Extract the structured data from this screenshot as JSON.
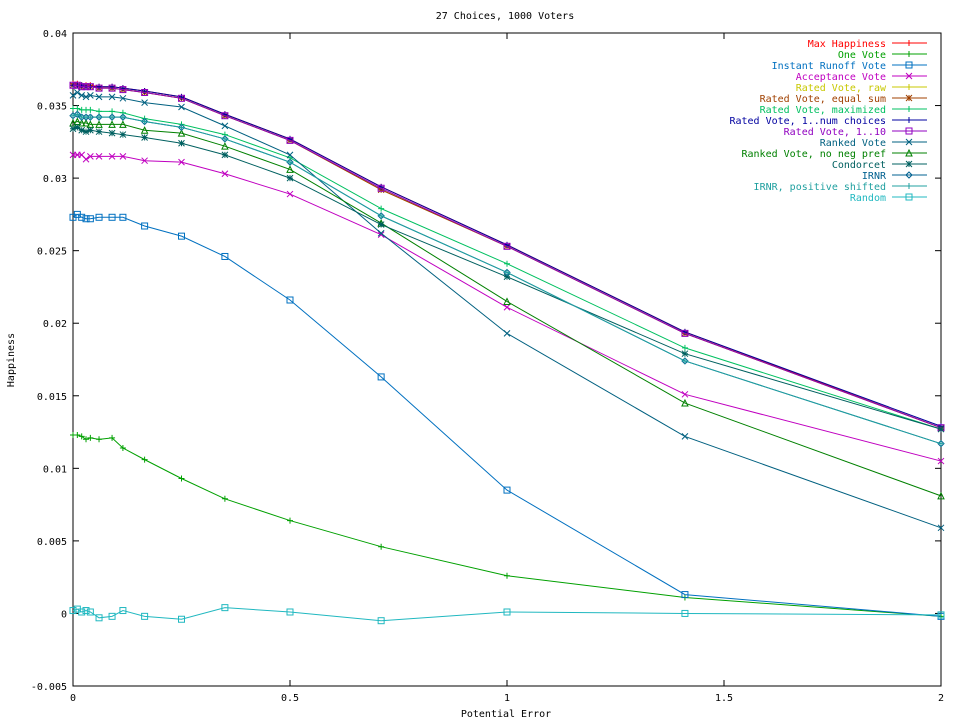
{
  "chart_data": {
    "type": "line",
    "title": "27 Choices, 1000 Voters",
    "xlabel": "Potential Error",
    "ylabel": "Happiness",
    "xlim": [
      0,
      2
    ],
    "ylim": [
      -0.005,
      0.04
    ],
    "grid": false,
    "legend_position": "top-right",
    "x_ticks": [
      0,
      0.5,
      1,
      1.5,
      2
    ],
    "x_tick_labels": [
      "0",
      "0.5",
      "1",
      "1.5",
      "2"
    ],
    "y_ticks": [
      -0.005,
      0,
      0.005,
      0.01,
      0.015,
      0.02,
      0.025,
      0.03,
      0.035,
      0.04
    ],
    "y_tick_labels": [
      "-0.005",
      "0",
      "0.005",
      "0.01",
      "0.015",
      "0.02",
      "0.025",
      "0.03",
      "0.035",
      "0.04"
    ],
    "x": [
      0,
      0.01,
      0.02,
      0.03,
      0.04,
      0.06,
      0.09,
      0.115,
      0.165,
      0.25,
      0.35,
      0.5,
      0.71,
      1,
      1.41,
      2
    ],
    "series": [
      {
        "name": "Max Happiness",
        "color": "#ff0000",
        "marker": "plus",
        "values": [
          0.0365,
          0.0365,
          0.0364,
          0.0364,
          0.0364,
          0.0363,
          0.0363,
          0.0362,
          0.036,
          0.0356,
          0.0344,
          0.0327,
          0.0294,
          0.0254,
          0.0194,
          0.0128
        ]
      },
      {
        "name": "One Vote",
        "color": "#00a000",
        "marker": "plus",
        "values": [
          0.0123,
          0.0123,
          0.0122,
          0.012,
          0.0121,
          0.012,
          0.0121,
          0.0114,
          0.0106,
          0.0093,
          0.0079,
          0.0064,
          0.0046,
          0.0026,
          0.0011,
          -0.0002
        ]
      },
      {
        "name": "Instant Runoff Vote",
        "color": "#0070c0",
        "marker": "box",
        "values": [
          0.0273,
          0.0275,
          0.0273,
          0.0272,
          0.0272,
          0.0273,
          0.0273,
          0.0273,
          0.0267,
          0.026,
          0.0246,
          0.0216,
          0.0163,
          0.0085,
          0.0013,
          -0.0002
        ]
      },
      {
        "name": "Acceptance Vote",
        "color": "#c000c0",
        "marker": "x",
        "values": [
          0.0316,
          0.0316,
          0.0316,
          0.0313,
          0.0315,
          0.0315,
          0.0315,
          0.0315,
          0.0312,
          0.0311,
          0.0303,
          0.0289,
          0.0261,
          0.0211,
          0.0151,
          0.0105
        ]
      },
      {
        "name": "Rated Vote, raw",
        "color": "#c8c800",
        "marker": "plus",
        "values": [
          0.0364,
          0.0364,
          0.0363,
          0.0363,
          0.0363,
          0.0362,
          0.0362,
          0.0361,
          0.0359,
          0.0355,
          0.0343,
          0.0326,
          0.0292,
          0.0253,
          0.0193,
          0.0128
        ]
      },
      {
        "name": "Rated Vote, equal sum",
        "color": "#a04000",
        "marker": "star",
        "values": [
          0.0364,
          0.0364,
          0.0363,
          0.0363,
          0.0363,
          0.0362,
          0.0362,
          0.0361,
          0.0359,
          0.0355,
          0.0343,
          0.0326,
          0.0292,
          0.0253,
          0.0193,
          0.0128
        ]
      },
      {
        "name": "Rated Vote, maximized",
        "color": "#00c060",
        "marker": "plus",
        "values": [
          0.0348,
          0.0348,
          0.0347,
          0.0347,
          0.0347,
          0.0346,
          0.0346,
          0.0345,
          0.0341,
          0.0337,
          0.033,
          0.0314,
          0.0279,
          0.0241,
          0.0183,
          0.0127
        ]
      },
      {
        "name": "Rated Vote, 1..num choices",
        "color": "#0000a0",
        "marker": "plus",
        "values": [
          0.0364,
          0.0364,
          0.0364,
          0.0363,
          0.0363,
          0.0363,
          0.0363,
          0.0362,
          0.036,
          0.0356,
          0.0344,
          0.0327,
          0.0294,
          0.0254,
          0.0194,
          0.0129
        ]
      },
      {
        "name": "Rated Vote, 1..10",
        "color": "#9000c0",
        "marker": "box",
        "values": [
          0.0364,
          0.0364,
          0.0363,
          0.0363,
          0.0363,
          0.0362,
          0.0362,
          0.0361,
          0.0359,
          0.0355,
          0.0343,
          0.0326,
          0.0293,
          0.0253,
          0.0193,
          0.0128
        ]
      },
      {
        "name": "Ranked Vote",
        "color": "#006080",
        "marker": "x",
        "values": [
          0.0357,
          0.0359,
          0.0357,
          0.0356,
          0.0357,
          0.0356,
          0.0356,
          0.0355,
          0.0352,
          0.0349,
          0.0336,
          0.0316,
          0.0262,
          0.0193,
          0.0122,
          0.0059
        ]
      },
      {
        "name": "Ranked Vote, no neg pref",
        "color": "#008000",
        "marker": "triangle",
        "values": [
          0.0338,
          0.0339,
          0.0338,
          0.0338,
          0.0337,
          0.0337,
          0.0337,
          0.0337,
          0.0333,
          0.0331,
          0.0322,
          0.0306,
          0.0269,
          0.0215,
          0.0145,
          0.0081
        ]
      },
      {
        "name": "Condorcet",
        "color": "#006060",
        "marker": "star",
        "values": [
          0.0334,
          0.0335,
          0.0333,
          0.0332,
          0.0333,
          0.0332,
          0.0331,
          0.033,
          0.0328,
          0.0324,
          0.0316,
          0.03,
          0.0268,
          0.0232,
          0.0179,
          0.0127
        ]
      },
      {
        "name": "IRNR",
        "color": "#006090",
        "marker": "diamond",
        "values": [
          0.0343,
          0.0344,
          0.0342,
          0.0342,
          0.0342,
          0.0342,
          0.0342,
          0.0342,
          0.0339,
          0.0335,
          0.0327,
          0.0311,
          0.0274,
          0.0235,
          0.0174,
          0.0117
        ]
      },
      {
        "name": "IRNR, positive shifted",
        "color": "#20a0a0",
        "marker": "plus",
        "values": [
          0.0343,
          0.0344,
          0.0342,
          0.0342,
          0.0342,
          0.0342,
          0.0342,
          0.0342,
          0.0339,
          0.0335,
          0.0327,
          0.0311,
          0.0274,
          0.0235,
          0.0174,
          0.0117
        ]
      },
      {
        "name": "Random",
        "color": "#20b8c0",
        "marker": "box",
        "values": [
          0.0002,
          0.0003,
          0.0001,
          0.0002,
          0.0001,
          -0.0003,
          -0.0002,
          0.0002,
          -0.0002,
          -0.0004,
          0.0004,
          0.0001,
          -0.0005,
          0.0001,
          0.0,
          -0.0001
        ]
      }
    ]
  }
}
